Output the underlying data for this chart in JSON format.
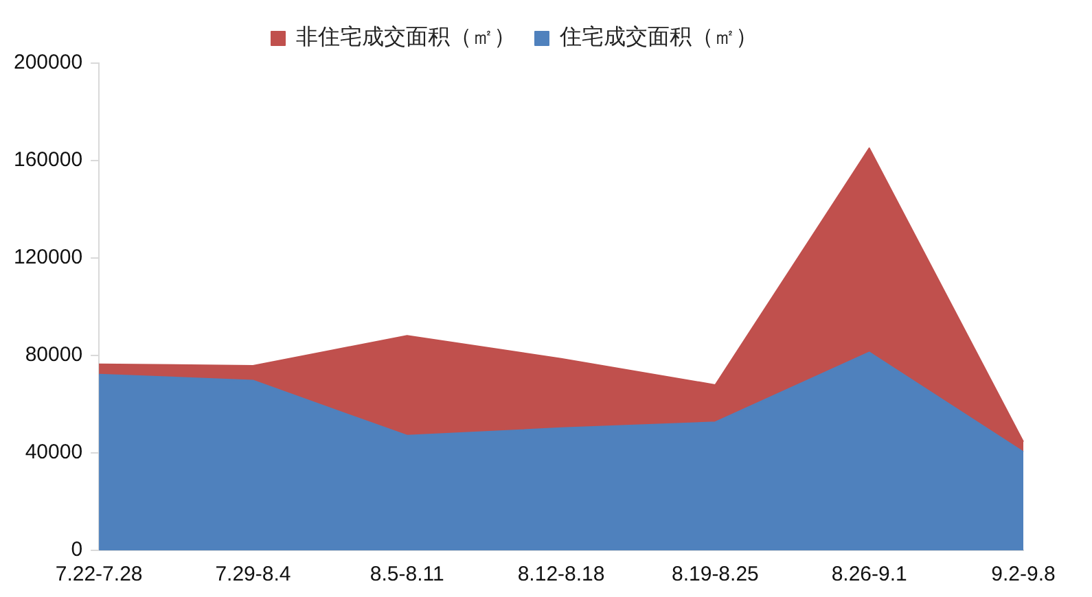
{
  "chart_data": {
    "type": "area",
    "stacked": true,
    "categories": [
      "7.22-7.28",
      "7.29-8.4",
      "8.5-8.11",
      "8.12-8.18",
      "8.19-8.25",
      "8.26-9.1",
      "9.2-9.8"
    ],
    "series": [
      {
        "name": "住宅成交面积（㎡）",
        "color": "#4f81bd",
        "values": [
          72200,
          69700,
          47100,
          50200,
          52600,
          81300,
          40400
        ]
      },
      {
        "name": "非住宅成交面积（㎡）",
        "color": "#c0504d",
        "values": [
          4200,
          6100,
          41000,
          28500,
          15300,
          83800,
          4200
        ]
      }
    ],
    "ylim": [
      0,
      200000
    ],
    "yticks": [
      0,
      40000,
      80000,
      120000,
      160000,
      200000
    ],
    "grid": false,
    "legend": "top"
  }
}
